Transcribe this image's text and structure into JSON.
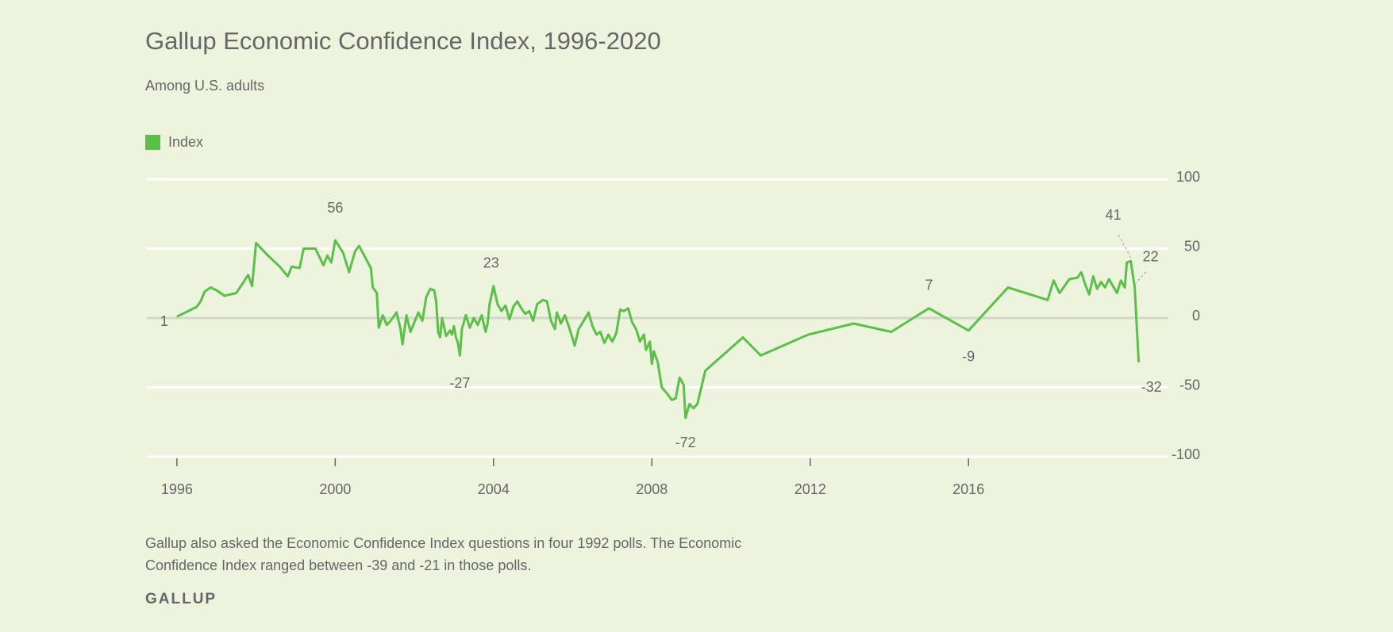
{
  "chart_data": {
    "type": "line",
    "title": "Gallup Economic Confidence Index, 1996-2020",
    "subtitle": "Among U.S. adults",
    "note": [
      "Gallup also asked the Economic Confidence Index questions in four 1992 polls. The Economic",
      "Confidence Index ranged between -39 and -21 in those polls."
    ],
    "source": "GALLUP",
    "x": [
      1996.0,
      1996.5,
      1996.6,
      1996.7,
      1996.85,
      1997.0,
      1997.2,
      1997.5,
      1997.8,
      1997.9,
      1998.0,
      1998.3,
      1998.6,
      1998.8,
      1998.9,
      1999.1,
      1999.2,
      1999.5,
      1999.6,
      1999.7,
      1999.8,
      1999.9,
      2000.0,
      2000.2,
      2000.35,
      2000.5,
      2000.6,
      2000.75,
      2000.9,
      2000.95,
      2001.05,
      2001.1,
      2001.2,
      2001.3,
      2001.4,
      2001.55,
      2001.65,
      2001.7,
      2001.8,
      2001.9,
      2002.0,
      2002.1,
      2002.2,
      2002.3,
      2002.4,
      2002.5,
      2002.55,
      2002.6,
      2002.65,
      2002.7,
      2002.8,
      2002.9,
      2002.95,
      2003.0,
      2003.05,
      2003.1,
      2003.15,
      2003.2,
      2003.3,
      2003.4,
      2003.5,
      2003.6,
      2003.7,
      2003.8,
      2003.85,
      2003.9,
      2004.0,
      2004.1,
      2004.2,
      2004.3,
      2004.4,
      2004.5,
      2004.6,
      2004.7,
      2004.8,
      2004.9,
      2005.0,
      2005.1,
      2005.25,
      2005.35,
      2005.45,
      2005.55,
      2005.6,
      2005.7,
      2005.8,
      2005.9,
      2006.0,
      2006.05,
      2006.15,
      2006.3,
      2006.4,
      2006.5,
      2006.6,
      2006.7,
      2006.8,
      2006.9,
      2007.0,
      2007.1,
      2007.2,
      2007.3,
      2007.4,
      2007.5,
      2007.6,
      2007.7,
      2007.8,
      2007.85,
      2007.95,
      2008.0,
      2008.05,
      2008.15,
      2008.25,
      2008.4,
      2008.5,
      2008.6,
      2008.7,
      2008.8,
      2008.85,
      2008.95,
      2009.05,
      2009.15,
      2009.35,
      2010.3,
      2010.75,
      2011.95,
      2013.1,
      2014.05,
      2015.0,
      2016.0,
      2017.0,
      2018.0,
      2018.15,
      2018.3,
      2018.55,
      2018.75,
      2018.85,
      2018.95,
      2019.05,
      2019.15,
      2019.25,
      2019.35,
      2019.45,
      2019.55,
      2019.75,
      2019.85,
      2019.95,
      2020.0,
      2020.1,
      2020.2,
      2020.3
    ],
    "series": [
      {
        "name": "Index",
        "color": "#5cbf4a",
        "values": [
          1,
          8,
          12,
          19,
          22,
          20,
          16,
          18,
          31,
          23,
          54,
          45,
          37,
          30,
          37,
          36,
          50,
          50,
          44,
          38,
          45,
          40,
          56,
          47,
          33,
          48,
          52,
          44,
          36,
          22,
          18,
          -7,
          2,
          -5,
          -2,
          4,
          -8,
          -19,
          2,
          -10,
          -3,
          4,
          -2,
          15,
          21,
          20,
          12,
          -10,
          -14,
          0,
          -13,
          -9,
          -12,
          -6,
          -14,
          -18,
          -27,
          -8,
          2,
          -7,
          0,
          -5,
          2,
          -10,
          -4,
          10,
          23,
          10,
          5,
          9,
          -1,
          8,
          12,
          7,
          3,
          5,
          -2,
          10,
          13,
          12,
          -2,
          -8,
          4,
          -4,
          2,
          -6,
          -15,
          -20,
          -8,
          -1,
          4,
          -6,
          -12,
          -10,
          -18,
          -12,
          -17,
          -11,
          6,
          5,
          7,
          -3,
          -8,
          -17,
          -12,
          -23,
          -17,
          -33,
          -24,
          -32,
          -50,
          -55,
          -59,
          -58,
          -43,
          -48,
          -72,
          -62,
          -65,
          -62,
          -38,
          -14,
          -27,
          -12,
          -4,
          -10,
          7,
          -9,
          22,
          13,
          27,
          18,
          28,
          29,
          33,
          24,
          17,
          30,
          21,
          26,
          22,
          28,
          18,
          27,
          22,
          40,
          41,
          22,
          -32
        ]
      }
    ],
    "xlim": [
      1995.24,
      2021.05
    ],
    "xticks": [
      1996,
      2000,
      2004,
      2008,
      2012,
      2016
    ],
    "ylim": [
      -100,
      100
    ],
    "yticks": [
      -100,
      -50,
      0,
      50,
      100
    ],
    "grid": true,
    "legend": "top-left"
  }
}
